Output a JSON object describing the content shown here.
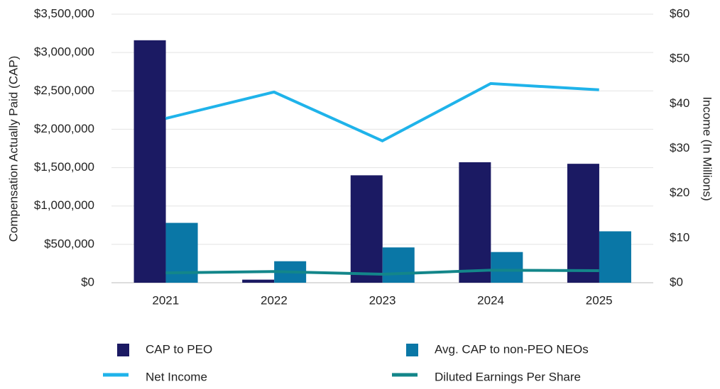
{
  "chart_data": {
    "type": "bar",
    "y_label": "Compensation Actually Paid (CAP)",
    "y2_label": "Income (In Millions)",
    "categories": [
      "2021",
      "2022",
      "2023",
      "2024",
      "2025"
    ],
    "series": [
      {
        "name": "CAP to PEO",
        "type": "bar",
        "color": "#1b1a63",
        "values": [
          3160000,
          40000,
          1400000,
          1570000,
          1550000
        ]
      },
      {
        "name": "Avg. CAP to non-PEO NEOs",
        "type": "bar",
        "color": "#0a77a6",
        "values": [
          780000,
          280000,
          460000,
          400000,
          670000
        ]
      },
      {
        "name": "Net Income",
        "type": "line",
        "axis": "y2",
        "color": "#1fb3ea",
        "values": [
          36.7,
          42.6,
          31.7,
          44.5,
          43.1
        ]
      },
      {
        "name": "Diluted Earnings Per Share",
        "type": "line",
        "axis": "y2",
        "color": "#13868a",
        "values": [
          2.2,
          2.5,
          1.9,
          2.8,
          2.7
        ]
      }
    ],
    "ylim": [
      0,
      3500000
    ],
    "yticks": [
      {
        "value": 0,
        "label": "$0"
      },
      {
        "value": 500000,
        "label": "$500,000"
      },
      {
        "value": 1000000,
        "label": "$1,000,000"
      },
      {
        "value": 1500000,
        "label": "$1,500,000"
      },
      {
        "value": 2000000,
        "label": "$2,000,000"
      },
      {
        "value": 2500000,
        "label": "$2,500,000"
      },
      {
        "value": 3000000,
        "label": "$3,000,000"
      },
      {
        "value": 3500000,
        "label": "$3,500,000"
      }
    ],
    "y2lim": [
      0,
      60
    ],
    "y2ticks": [
      {
        "value": 0,
        "label": "$0"
      },
      {
        "value": 10,
        "label": "$10"
      },
      {
        "value": 20,
        "label": "$20"
      },
      {
        "value": 30,
        "label": "$30"
      },
      {
        "value": 40,
        "label": "$40"
      },
      {
        "value": 50,
        "label": "$50"
      },
      {
        "value": 60,
        "label": "$60"
      }
    ],
    "grid": true
  }
}
